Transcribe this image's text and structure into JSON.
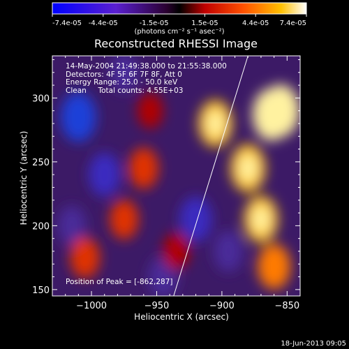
{
  "colorbar": {
    "tick_labels": [
      "-7.4e-05",
      "-4.4e-05",
      "-1.5e-05",
      "1.5e-05",
      "4.4e-05",
      "7.4e-05"
    ],
    "units": "(photons cm⁻² s⁻¹ asec⁻²)",
    "range": [
      -7.4e-05,
      7.4e-05
    ]
  },
  "chart_data": {
    "type": "heatmap",
    "title": "Reconstructed RHESSI Image",
    "xlabel": "Heliocentric X (arcsec)",
    "ylabel": "Heliocentric Y (arcsec)",
    "xlim": [
      -1030,
      -840
    ],
    "ylim": [
      145,
      333
    ],
    "x_ticks": [
      -1000,
      -950,
      -900,
      -850
    ],
    "y_ticks": [
      150,
      200,
      250,
      300
    ],
    "x_tick_labels": [
      "−1000",
      "−950",
      "−900",
      "−850"
    ],
    "y_tick_labels": [
      "150",
      "200",
      "250",
      "300"
    ],
    "annotations": [
      "14-May-2004 21:49:38.000 to 21:55:38.000",
      "Detectors: 4F 5F 6F 7F 8F, Att 0",
      "Energy Range: 25.0 - 50.0 keV",
      "Clean     Total counts: 4.55E+03"
    ],
    "peak_label": "Position of Peak = [-862,287]",
    "peak": [
      -862,
      287
    ],
    "limb_line": [
      [
        -937,
        145
      ],
      [
        -880,
        333
      ]
    ],
    "bright_regions": [
      {
        "x": -855,
        "y": 290,
        "level": 1.0
      },
      {
        "x": -862,
        "y": 287,
        "level": 1.0
      },
      {
        "x": -880,
        "y": 245,
        "level": 0.85
      },
      {
        "x": -905,
        "y": 280,
        "level": 0.8
      },
      {
        "x": -870,
        "y": 205,
        "level": 0.8
      },
      {
        "x": -860,
        "y": 168,
        "level": 0.75
      },
      {
        "x": -960,
        "y": 245,
        "level": 0.6
      },
      {
        "x": -975,
        "y": 205,
        "level": 0.55
      },
      {
        "x": -1005,
        "y": 175,
        "level": 0.6
      },
      {
        "x": -935,
        "y": 180,
        "level": 0.45
      },
      {
        "x": -955,
        "y": 290,
        "level": 0.4
      }
    ],
    "dark_regions": [
      {
        "x": -1010,
        "y": 285,
        "level": -0.9
      },
      {
        "x": -990,
        "y": 240,
        "level": -0.7
      },
      {
        "x": -920,
        "y": 205,
        "level": -0.75
      },
      {
        "x": -895,
        "y": 180,
        "level": -0.6
      },
      {
        "x": -945,
        "y": 160,
        "level": -0.6
      },
      {
        "x": -1015,
        "y": 200,
        "level": -0.55
      },
      {
        "x": -975,
        "y": 320,
        "level": -0.5
      }
    ]
  },
  "timestamp": "18-Jun-2013 09:05"
}
